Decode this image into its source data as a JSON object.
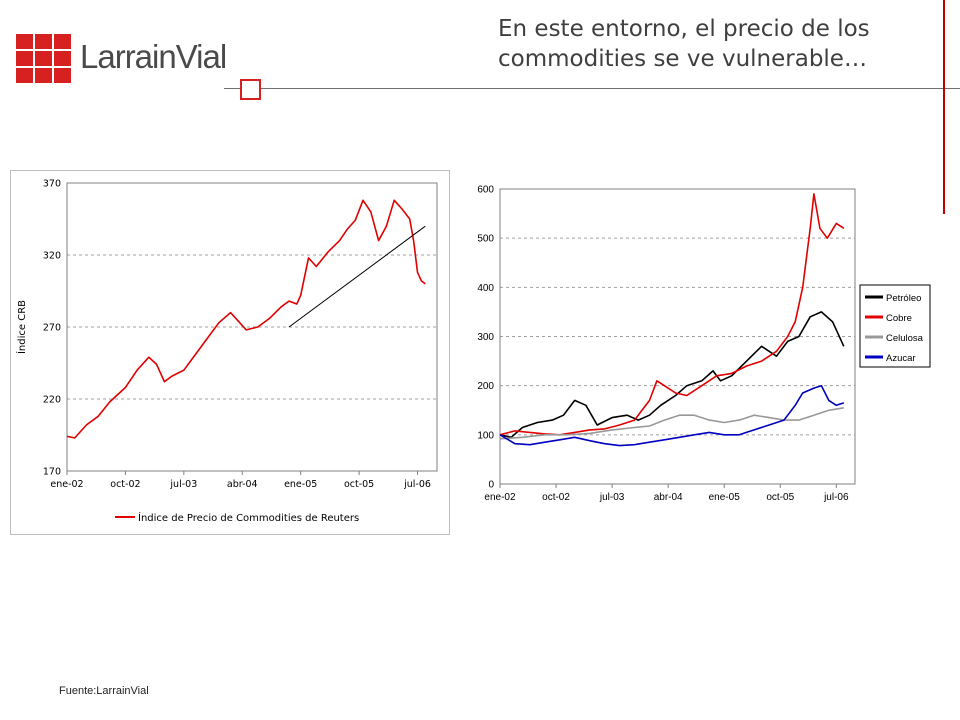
{
  "header": {
    "brand": "LarrainVial",
    "title_line1": "En este entorno, el precio de los",
    "title_line2": "commodities se ve vulnerable…"
  },
  "footer": {
    "source": "Fuente:LarrainVial"
  },
  "colors": {
    "brand_red": "#d72020",
    "rule": "#707070",
    "accent_red": "#c00000"
  },
  "chart_data": [
    {
      "type": "line",
      "ylabel": "Índice CRB",
      "ylim": [
        170,
        370
      ],
      "yticks": [
        "170",
        "220",
        "270",
        "320",
        "370"
      ],
      "xticks": [
        "ene-02",
        "oct-02",
        "jul-03",
        "abr-04",
        "ene-05",
        "oct-05",
        "jul-06"
      ],
      "legend": [
        "Índice de Precio de Commodities de Reuters"
      ],
      "grid": "horizontal dashed",
      "series": [
        {
          "name": "Índice de Precio de Commodities de Reuters",
          "color": "#e00000",
          "x": [
            2002.0,
            2002.1,
            2002.25,
            2002.4,
            2002.55,
            2002.75,
            2002.9,
            2003.05,
            2003.15,
            2003.25,
            2003.35,
            2003.5,
            2003.65,
            2003.8,
            2003.95,
            2004.1,
            2004.2,
            2004.3,
            2004.45,
            2004.6,
            2004.75,
            2004.85,
            2004.95,
            2005.0,
            2005.1,
            2005.2,
            2005.35,
            2005.5,
            2005.6,
            2005.7,
            2005.8,
            2005.9,
            2006.0,
            2006.1,
            2006.2,
            2006.3,
            2006.4,
            2006.45,
            2006.5,
            2006.55,
            2006.6
          ],
          "values": [
            194,
            193,
            202,
            208,
            218,
            228,
            240,
            249,
            244,
            232,
            236,
            240,
            251,
            262,
            273,
            280,
            274,
            268,
            270,
            276,
            284,
            288,
            286,
            292,
            318,
            312,
            322,
            330,
            338,
            344,
            358,
            350,
            330,
            340,
            358,
            352,
            345,
            330,
            308,
            302,
            300
          ]
        },
        {
          "name": "",
          "color": "#000000",
          "x": [
            2004.85,
            2006.6
          ],
          "values": [
            270,
            340
          ]
        }
      ]
    },
    {
      "type": "line",
      "ylim": [
        0,
        600
      ],
      "yticks": [
        "0",
        "100",
        "200",
        "300",
        "400",
        "500",
        "600"
      ],
      "xticks": [
        "ene-02",
        "oct-02",
        "jul-03",
        "abr-04",
        "ene-05",
        "oct-05",
        "jul-06"
      ],
      "grid": "horizontal dashed",
      "legend_position": "right",
      "series": [
        {
          "name": "Petróleo",
          "color": "#000000",
          "x": [
            2002.0,
            2002.15,
            2002.3,
            2002.5,
            2002.7,
            2002.85,
            2003.0,
            2003.15,
            2003.3,
            2003.5,
            2003.7,
            2003.85,
            2004.0,
            2004.15,
            2004.35,
            2004.5,
            2004.7,
            2004.85,
            2004.95,
            2005.1,
            2005.3,
            2005.5,
            2005.7,
            2005.85,
            2006.0,
            2006.15,
            2006.3,
            2006.45,
            2006.6
          ],
          "values": [
            100,
            95,
            115,
            125,
            130,
            140,
            170,
            160,
            120,
            135,
            140,
            130,
            140,
            160,
            180,
            200,
            210,
            230,
            210,
            220,
            250,
            280,
            260,
            290,
            300,
            340,
            350,
            330,
            280
          ]
        },
        {
          "name": "Cobre",
          "color": "#e00000",
          "x": [
            2002.0,
            2002.2,
            2002.4,
            2002.6,
            2002.8,
            2003.0,
            2003.2,
            2003.4,
            2003.6,
            2003.8,
            2004.0,
            2004.1,
            2004.2,
            2004.35,
            2004.5,
            2004.7,
            2004.9,
            2005.1,
            2005.3,
            2005.5,
            2005.7,
            2005.85,
            2005.95,
            2006.05,
            2006.15,
            2006.2,
            2006.28,
            2006.38,
            2006.5,
            2006.6
          ],
          "values": [
            100,
            108,
            105,
            102,
            100,
            105,
            110,
            112,
            120,
            130,
            170,
            210,
            200,
            185,
            180,
            200,
            220,
            225,
            240,
            250,
            270,
            300,
            330,
            400,
            520,
            590,
            520,
            500,
            530,
            520
          ]
        },
        {
          "name": "Celulosa",
          "color": "#999999",
          "x": [
            2002.0,
            2002.3,
            2002.6,
            2002.9,
            2003.2,
            2003.5,
            2003.8,
            2004.0,
            2004.2,
            2004.4,
            2004.6,
            2004.8,
            2005.0,
            2005.2,
            2005.4,
            2005.6,
            2005.8,
            2006.0,
            2006.2,
            2006.4,
            2006.6
          ],
          "values": [
            92,
            95,
            100,
            100,
            103,
            110,
            115,
            118,
            130,
            140,
            140,
            130,
            125,
            130,
            140,
            135,
            130,
            130,
            140,
            150,
            155
          ]
        },
        {
          "name": "Azucar",
          "color": "#0000c0",
          "x": [
            2002.0,
            2002.2,
            2002.4,
            2002.6,
            2002.8,
            2003.0,
            2003.2,
            2003.4,
            2003.6,
            2003.8,
            2004.0,
            2004.2,
            2004.4,
            2004.6,
            2004.8,
            2005.0,
            2005.2,
            2005.4,
            2005.6,
            2005.8,
            2005.95,
            2006.05,
            2006.2,
            2006.3,
            2006.4,
            2006.5,
            2006.6
          ],
          "values": [
            100,
            82,
            80,
            85,
            90,
            95,
            88,
            82,
            78,
            80,
            85,
            90,
            95,
            100,
            105,
            100,
            100,
            110,
            120,
            130,
            160,
            185,
            195,
            200,
            170,
            160,
            165
          ]
        }
      ]
    }
  ]
}
